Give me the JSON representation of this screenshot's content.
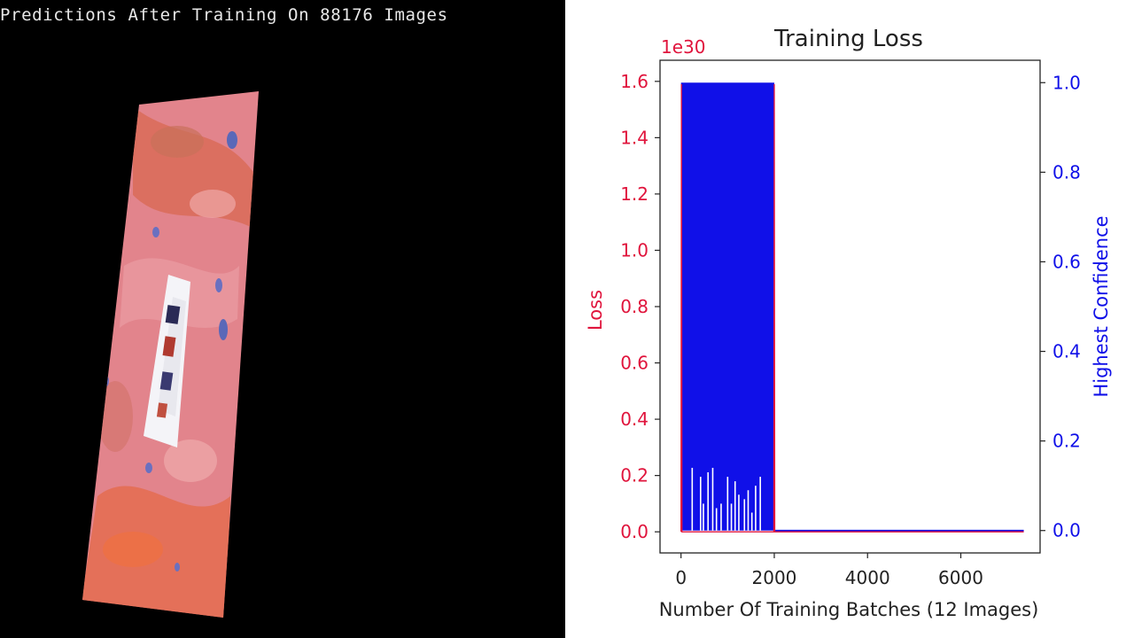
{
  "left_panel": {
    "title": "Predictions After Training On 88176 Images"
  },
  "colors": {
    "loss": "#e0143c",
    "confidence": "#1010e8",
    "axis": "#222222"
  },
  "chart_data": {
    "type": "line",
    "title": "Training Loss",
    "xlabel": "Number Of Training Batches (12 Images)",
    "ylabel_left": "Loss",
    "ylabel_right": "Highest Confidence",
    "offset_text": "1e30",
    "xlim": [
      -450,
      7700
    ],
    "ylim_left": [
      -0.075,
      1.675
    ],
    "ylim_right": [
      -0.05,
      1.05
    ],
    "x_ticks": [
      0,
      2000,
      4000,
      6000
    ],
    "x_tick_labels": [
      "0",
      "2000",
      "4000",
      "6000"
    ],
    "y_left_ticks": [
      0.0,
      0.2,
      0.4,
      0.6,
      0.8,
      1.0,
      1.2,
      1.4,
      1.6
    ],
    "y_left_tick_labels": [
      "0.0",
      "0.2",
      "0.4",
      "0.6",
      "0.8",
      "1.0",
      "1.2",
      "1.4",
      "1.6"
    ],
    "y_right_ticks": [
      0.0,
      0.2,
      0.4,
      0.6,
      0.8,
      1.0
    ],
    "y_right_tick_labels": [
      "0.0",
      "0.2",
      "0.4",
      "0.6",
      "0.8",
      "1.0"
    ],
    "series": [
      {
        "name": "Loss",
        "axis": "left",
        "x": [
          0,
          10,
          20,
          1990,
          2000,
          2010,
          7350
        ],
        "values": [
          0.0,
          1.59,
          0.0,
          0.0,
          1.59,
          0.0,
          0.0
        ]
      },
      {
        "name": "Highest Confidence",
        "axis": "right",
        "x_start": 0,
        "x_oscillation_end": 2000,
        "x_end": 7350,
        "oscillation_range": [
          0.0,
          1.0
        ],
        "white_gaps": [
          {
            "x": 240,
            "top": 0.14
          },
          {
            "x": 420,
            "top": 0.12
          },
          {
            "x": 480,
            "top": 0.06
          },
          {
            "x": 580,
            "top": 0.13
          },
          {
            "x": 680,
            "top": 0.14
          },
          {
            "x": 760,
            "top": 0.05
          },
          {
            "x": 860,
            "top": 0.06
          },
          {
            "x": 1000,
            "top": 0.12
          },
          {
            "x": 1080,
            "top": 0.06
          },
          {
            "x": 1160,
            "top": 0.11
          },
          {
            "x": 1240,
            "top": 0.08
          },
          {
            "x": 1360,
            "top": 0.07
          },
          {
            "x": 1440,
            "top": 0.09
          },
          {
            "x": 1520,
            "top": 0.04
          },
          {
            "x": 1600,
            "top": 0.1
          },
          {
            "x": 1700,
            "top": 0.12
          }
        ],
        "final_value": 0.0
      }
    ]
  }
}
